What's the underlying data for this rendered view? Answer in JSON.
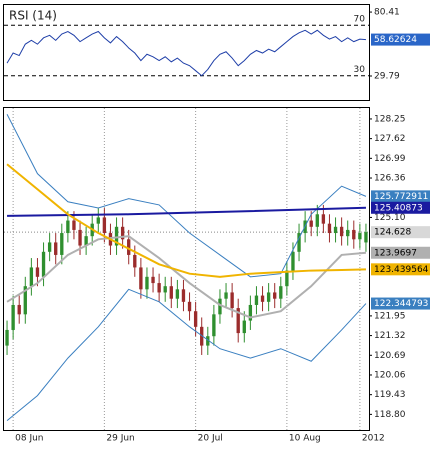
{
  "chart_data": [
    {
      "type": "line",
      "title": "RSI (14)",
      "color": "#1f3fa8",
      "label_color": "#2a66c8",
      "values": [
        40,
        48,
        46,
        55,
        58,
        55,
        60,
        62,
        58,
        63,
        65,
        62,
        57,
        60,
        63,
        65,
        60,
        56,
        61,
        57,
        52,
        48,
        42,
        47,
        45,
        42,
        45,
        41,
        44,
        40,
        38,
        34,
        30,
        35,
        42,
        47,
        49,
        44,
        38,
        42,
        47,
        50,
        48,
        51,
        49,
        53,
        57,
        61,
        64,
        66,
        63,
        66,
        62,
        59,
        61,
        57,
        60,
        57,
        59,
        58.62624
      ],
      "xlim": [
        -0.5,
        59.5
      ],
      "ylim": [
        10.8,
        86
      ],
      "yticks": [
        80.41,
        29.79
      ],
      "levels": [
        70,
        30
      ],
      "end_label": true
    },
    {
      "type": "candlestick",
      "open": [
        121.0,
        121.5,
        122.3,
        122.0,
        122.9,
        123.5,
        123.2,
        124.0,
        124.3,
        123.9,
        124.6,
        125.0,
        124.7,
        124.2,
        124.5,
        124.9,
        125.1,
        124.6,
        124.2,
        124.8,
        124.4,
        123.9,
        123.5,
        122.8,
        123.2,
        123.0,
        122.7,
        122.9,
        122.5,
        122.8,
        122.4,
        122.1,
        121.6,
        121.0,
        121.3,
        122.0,
        122.5,
        122.7,
        122.2,
        121.4,
        121.8,
        122.3,
        122.6,
        122.4,
        122.7,
        122.5,
        122.9,
        123.4,
        124.0,
        124.6,
        125.0,
        124.8,
        125.2,
        124.9,
        124.6,
        124.8,
        124.5,
        124.7,
        124.4,
        124.3
      ],
      "high": [
        121.8,
        122.6,
        122.6,
        123.2,
        123.8,
        123.8,
        124.3,
        124.6,
        124.6,
        124.9,
        125.3,
        125.3,
        125.0,
        124.8,
        125.2,
        125.4,
        125.4,
        124.9,
        125.1,
        125.1,
        124.7,
        124.2,
        123.8,
        123.5,
        123.5,
        123.3,
        123.2,
        123.2,
        123.1,
        123.1,
        122.7,
        122.4,
        121.9,
        121.6,
        122.3,
        122.8,
        123.0,
        123.0,
        122.5,
        122.1,
        122.6,
        122.9,
        122.9,
        123.0,
        123.0,
        123.2,
        123.7,
        124.3,
        124.9,
        125.3,
        125.3,
        125.5,
        125.5,
        125.2,
        125.1,
        125.1,
        125.0,
        125.0,
        124.9,
        124.9
      ],
      "low": [
        120.7,
        121.2,
        121.7,
        121.7,
        122.6,
        122.9,
        122.9,
        123.7,
        123.6,
        123.6,
        124.3,
        124.4,
        123.9,
        123.9,
        124.2,
        124.6,
        124.3,
        123.9,
        123.9,
        124.1,
        123.6,
        123.2,
        122.5,
        122.5,
        122.7,
        122.4,
        122.4,
        122.2,
        122.2,
        122.1,
        121.8,
        121.3,
        120.7,
        120.7,
        121.0,
        121.7,
        122.2,
        121.9,
        121.1,
        121.1,
        121.5,
        122.0,
        122.1,
        122.1,
        122.2,
        122.2,
        122.6,
        123.1,
        123.7,
        124.3,
        124.5,
        124.5,
        124.6,
        124.3,
        124.3,
        124.2,
        124.2,
        124.1,
        124.1,
        124.0
      ],
      "close": [
        121.5,
        122.3,
        122.0,
        122.9,
        123.5,
        123.2,
        124.0,
        124.3,
        123.9,
        124.6,
        125.0,
        124.7,
        124.2,
        124.5,
        124.9,
        125.1,
        124.6,
        124.2,
        124.8,
        124.4,
        123.9,
        123.5,
        122.8,
        123.2,
        123.0,
        122.7,
        122.9,
        122.5,
        122.8,
        122.4,
        122.1,
        121.6,
        121.0,
        121.3,
        122.0,
        122.5,
        122.7,
        122.2,
        121.4,
        121.8,
        122.3,
        122.6,
        122.4,
        122.7,
        122.5,
        122.9,
        123.4,
        124.0,
        124.6,
        125.0,
        124.8,
        125.2,
        124.9,
        124.6,
        124.8,
        124.5,
        124.7,
        124.4,
        124.6,
        124.628
      ],
      "up_color": "#2f8f2f",
      "down_color": "#9b2c2c",
      "last_price_color": "#d8d8d8",
      "overlays": [
        {
          "color": "#3a7fc0",
          "text_color": "#ffffff",
          "width": 1,
          "x": [
            0,
            5,
            10,
            15,
            20,
            25,
            30,
            35,
            40,
            45,
            50,
            55,
            59
          ],
          "values": [
            128.4,
            126.5,
            125.6,
            125.4,
            125.7,
            125.5,
            124.6,
            123.9,
            123.2,
            123.3,
            125.2,
            126.1,
            125.772911
          ]
        },
        {
          "color": "#1a1aa0",
          "text_color": "#ffffff",
          "width": 2,
          "x": [
            0,
            20,
            40,
            59
          ],
          "values": [
            125.15,
            125.2,
            125.3,
            125.40873
          ]
        },
        {
          "color": "#3a7fc0",
          "text_color": "#ffffff",
          "width": 1,
          "x": [
            0,
            5,
            10,
            15,
            20,
            25,
            30,
            35,
            40,
            45,
            50,
            55,
            59
          ],
          "values": [
            118.6,
            119.4,
            120.6,
            121.6,
            122.8,
            122.4,
            121.6,
            120.9,
            120.6,
            120.9,
            120.5,
            121.5,
            122.344793
          ]
        },
        {
          "color": "#b0b0b0",
          "text_color": "#000000",
          "width": 2,
          "x": [
            0,
            5,
            10,
            15,
            20,
            25,
            30,
            35,
            40,
            45,
            50,
            55,
            59
          ],
          "values": [
            122.4,
            123.0,
            123.9,
            124.4,
            124.5,
            123.8,
            123.0,
            122.3,
            121.9,
            122.1,
            122.9,
            123.9,
            123.9697
          ]
        },
        {
          "color": "#f0b400",
          "text_color": "#000000",
          "width": 2,
          "x": [
            0,
            5,
            10,
            15,
            20,
            25,
            30,
            35,
            40,
            45,
            50,
            55,
            59
          ],
          "values": [
            126.8,
            126.0,
            125.2,
            124.6,
            124.1,
            123.6,
            123.3,
            123.2,
            123.3,
            123.35,
            123.4,
            123.42,
            123.439564
          ]
        }
      ],
      "xlim": [
        -0.5,
        59.5
      ],
      "xticks": [
        {
          "value": 1,
          "label": "08 Jun"
        },
        {
          "value": 16,
          "label": "29 Jun"
        },
        {
          "value": 31,
          "label": "20 Jul"
        },
        {
          "value": 46,
          "label": "10 Aug"
        },
        {
          "value": 58,
          "label": "2012"
        }
      ],
      "ylim": [
        118.3,
        128.6
      ],
      "yticks": [
        128.25,
        127.62,
        126.99,
        126.36,
        {
          "value": 125.1,
          "label": "125.10"
        },
        121.95,
        121.32,
        120.69,
        120.06,
        119.43,
        {
          "value": 118.8,
          "label": "118.80"
        }
      ],
      "end_labels": true
    }
  ]
}
